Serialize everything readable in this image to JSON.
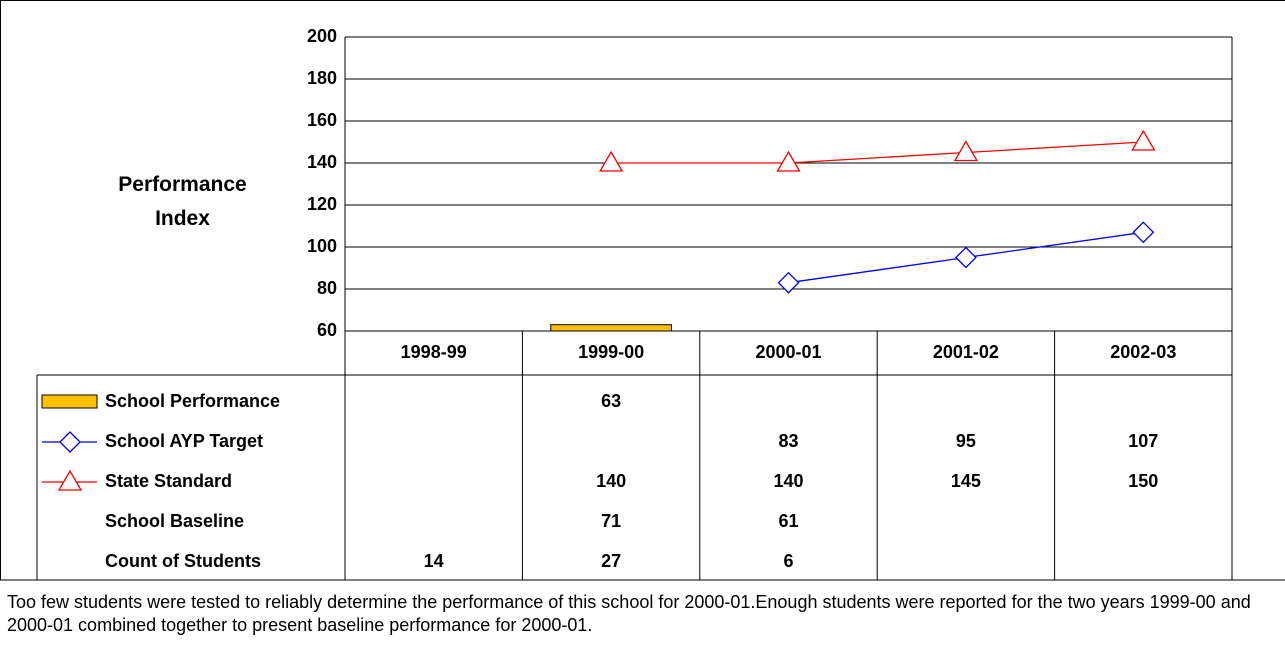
{
  "chart_data": {
    "type": "combo",
    "y_label": "Performance Index",
    "categories": [
      "1998-99",
      "1999-00",
      "2000-01",
      "2001-02",
      "2002-03"
    ],
    "series": [
      {
        "name": "School Performance",
        "type": "bar",
        "color": "#ffc000",
        "values": [
          null,
          63,
          null,
          null,
          null
        ]
      },
      {
        "name": "School AYP Target",
        "type": "line",
        "marker": "diamond",
        "color": "#0000ff",
        "values": [
          null,
          null,
          83,
          95,
          107
        ]
      },
      {
        "name": "State Standard",
        "type": "line",
        "marker": "triangle",
        "color": "#ff0000",
        "values": [
          null,
          140,
          140,
          145,
          150
        ]
      }
    ],
    "table_rows": [
      {
        "name": "School Baseline",
        "values": [
          null,
          71,
          61,
          null,
          null
        ]
      },
      {
        "name": "Count of Students",
        "values": [
          14,
          27,
          6,
          null,
          null
        ]
      }
    ],
    "ylim": [
      60,
      200
    ],
    "yticks": [
      60,
      80,
      100,
      120,
      140,
      160,
      180,
      200
    ],
    "grid": true,
    "note": "Too few students were tested to reliably determine the performance of this school for 2000-01.Enough students were reported for the two years 1999-00 and 2000-01 combined together to present baseline performance for 2000-01."
  }
}
